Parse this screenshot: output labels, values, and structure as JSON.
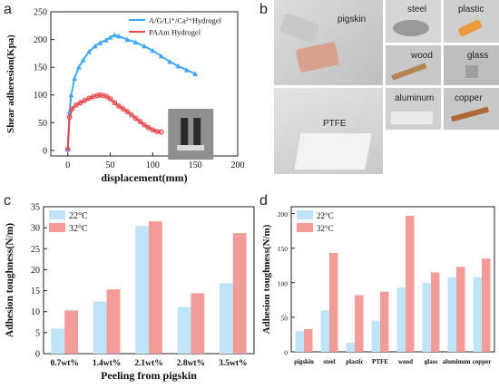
{
  "panels": {
    "a": {
      "letter": "a"
    },
    "b": {
      "letter": "b",
      "photo_labels": [
        "pigskin",
        "steel",
        "plastic",
        "wood",
        "glass",
        "PTFE",
        "aluminum",
        "copper"
      ]
    },
    "c": {
      "letter": "c"
    },
    "d": {
      "letter": "d"
    }
  },
  "chart_data": [
    {
      "type": "line",
      "panel": "a",
      "xlabel": "displacement(mm)",
      "ylabel": "Shear adheresion(Kpa)",
      "xlim": [
        -20,
        200
      ],
      "ylim": [
        -10,
        250
      ],
      "xticks": [
        0,
        50,
        100,
        150,
        200
      ],
      "yticks": [
        0,
        50,
        100,
        150,
        200,
        250
      ],
      "legend_position": "top-right",
      "series": [
        {
          "name": "A/G/Li⁺/Ca²⁺Hydrogel",
          "color": "#3fa9f5",
          "marker": "triangle",
          "x": [
            0,
            2,
            4,
            8,
            13,
            18,
            25,
            32,
            38,
            45,
            50,
            55,
            60,
            70,
            80,
            90,
            100,
            110,
            120,
            130,
            140,
            150
          ],
          "y": [
            3,
            70,
            100,
            130,
            150,
            163,
            178,
            188,
            194,
            199,
            204,
            208,
            206,
            200,
            195,
            188,
            180,
            170,
            160,
            152,
            145,
            138
          ]
        },
        {
          "name": "PAAm Hydrogel",
          "color": "#e8474a",
          "marker": "circle",
          "x": [
            0,
            2,
            5,
            10,
            15,
            20,
            25,
            30,
            35,
            38,
            42,
            46,
            50,
            55,
            60,
            65,
            70,
            75,
            80,
            85,
            90,
            95,
            100,
            105,
            110
          ],
          "y": [
            2,
            60,
            75,
            82,
            86,
            90,
            94,
            97,
            99,
            100,
            99,
            97,
            93,
            86,
            80,
            75,
            70,
            64,
            58,
            52,
            46,
            41,
            37,
            34,
            33
          ]
        }
      ]
    },
    {
      "type": "bar",
      "panel": "c",
      "xlabel": "Peeling from pigskin",
      "ylabel": "Adhesion toughness(N/m)",
      "ylim": [
        0,
        35
      ],
      "yticks": [
        0,
        5,
        10,
        15,
        20,
        25,
        30,
        35
      ],
      "legend_position": "top-left",
      "categories": [
        "0.7wt%",
        "1.4wt%",
        "2.1wt%",
        "2.8wt%",
        "3.5wt%"
      ],
      "series": [
        {
          "name": "22°C",
          "color": "#bfe4f8",
          "values": [
            6,
            12.4,
            30.4,
            11.1,
            16.8
          ]
        },
        {
          "name": "32°C",
          "color": "#f29c9a",
          "values": [
            10.3,
            15.3,
            31.5,
            14.4,
            28.7
          ]
        }
      ]
    },
    {
      "type": "bar",
      "panel": "d",
      "ylabel": "Adhesion toughness(N/m)",
      "ylim": [
        0,
        210
      ],
      "yticks": [
        0,
        50,
        100,
        150,
        200
      ],
      "legend_position": "top-left",
      "categories": [
        "pigskin",
        "steel",
        "plastic",
        "PTFE",
        "wood",
        "glass",
        "aluminum",
        "copper"
      ],
      "series": [
        {
          "name": "22°C",
          "color": "#bfe4f8",
          "values": [
            30,
            60,
            13,
            45,
            93,
            100,
            108,
            108
          ]
        },
        {
          "name": "32°C",
          "color": "#f29c9a",
          "values": [
            33,
            143,
            82,
            87,
            197,
            115,
            123,
            135
          ]
        }
      ]
    }
  ]
}
